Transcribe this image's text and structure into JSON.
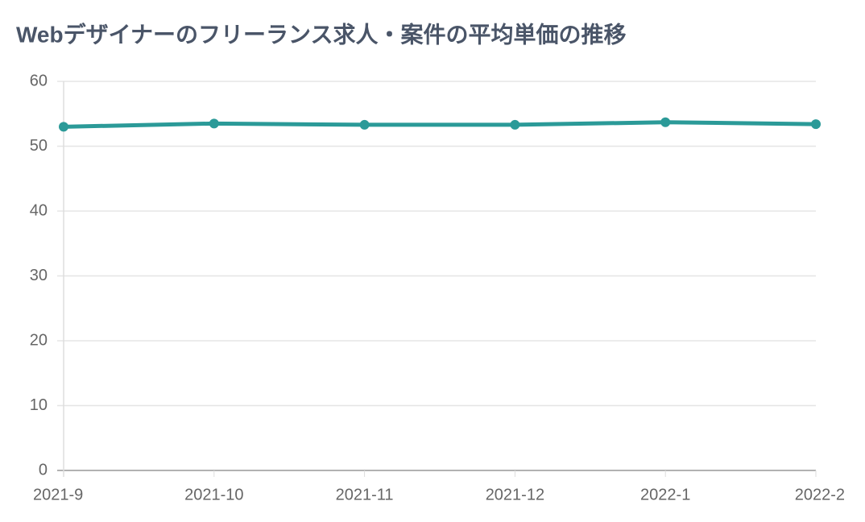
{
  "chart_data": {
    "type": "line",
    "title": "Webデザイナーのフリーランス求人・案件の平均単価の推移",
    "categories": [
      "2021-9",
      "2021-10",
      "2021-11",
      "2021-12",
      "2022-1",
      "2022-2"
    ],
    "series": [
      {
        "color": "#2b9a98",
        "values": [
          53.0,
          53.5,
          53.3,
          53.3,
          53.7,
          53.4
        ]
      }
    ],
    "ylim": [
      0,
      60
    ],
    "yticks": [
      0,
      10,
      20,
      30,
      40,
      50,
      60
    ],
    "grid": true
  }
}
